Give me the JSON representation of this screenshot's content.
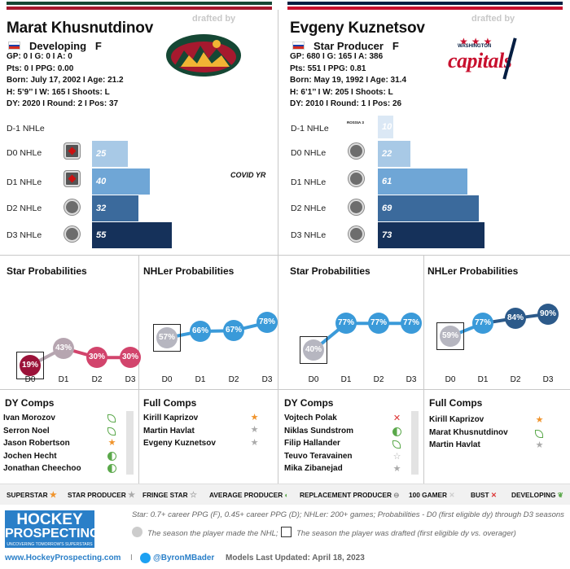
{
  "left": {
    "name": "Marat Khusnutdinov",
    "drafted_by": "drafted by",
    "role": "Developing",
    "pos": "F",
    "stats": [
      "GP: 0 I G: 0 I A: 0",
      "Pts: 0 I PPG: 0.00",
      "Born: July 17, 2002 I Age: 21.2",
      "H: 5’9’’ I W: 165 I Shoots: L",
      "DY: 2020 I Round: 2 I Pos: 37"
    ],
    "logo_name": "Minnesota Wild",
    "nhle": {
      "labels": [
        "D-1 NHLe",
        "D0 NHLe",
        "D1 NHLe",
        "D2 NHLe",
        "D3 NHLe"
      ],
      "values": [
        "",
        "25",
        "40",
        "32",
        "55"
      ],
      "note": "COVID YR"
    },
    "star_prob": {
      "title": "Star Probabilities",
      "x": [
        "D0",
        "D1",
        "D2",
        "D3"
      ],
      "values": [
        "19%",
        "43%",
        "30%",
        "30%"
      ]
    },
    "nhler_prob": {
      "title": "NHLer Probabilities",
      "x": [
        "D0",
        "D1",
        "D2",
        "D3"
      ],
      "values": [
        "57%",
        "66%",
        "67%",
        "78%"
      ]
    },
    "dy_comps": {
      "title": "DY Comps",
      "items": [
        "Ivan Morozov",
        "Serron Noel",
        "Jason Robertson",
        "Jochen Hecht",
        "Jonathan Cheechoo"
      ]
    },
    "full_comps": {
      "title": "Full Comps",
      "items": [
        "Kirill Kaprizov",
        "Martin Havlat",
        "Evgeny Kuznetsov"
      ]
    }
  },
  "right": {
    "name": "Evgeny Kuznetsov",
    "drafted_by": "drafted by",
    "role": "Star Producer",
    "pos": "F",
    "stats": [
      "GP: 680 I G: 165 I A: 386",
      "Pts: 551 I PPG: 0.81",
      "Born: May 19, 1992 I Age: 31.4",
      "H: 6’1’’ I W: 205 I Shoots: L",
      "DY: 2010 I Round: 1 I Pos: 26"
    ],
    "logo_text": "capitals",
    "logo_sub": "WASHINGTON",
    "nhle": {
      "labels": [
        "D-1 NHLe",
        "D0 NHLe",
        "D1 NHLe",
        "D2 NHLe",
        "D3 NHLe"
      ],
      "values": [
        "10",
        "22",
        "61",
        "69",
        "73"
      ],
      "d1_league": "ROSSIA 3"
    },
    "star_prob": {
      "title": "Star Probabilities",
      "x": [
        "D0",
        "D1",
        "D2",
        "D3"
      ],
      "values": [
        "40%",
        "77%",
        "77%",
        "77%"
      ]
    },
    "nhler_prob": {
      "title": "NHLer Probabilities",
      "x": [
        "D0",
        "D1",
        "D2",
        "D3"
      ],
      "values": [
        "59%",
        "77%",
        "84%",
        "90%"
      ]
    },
    "dy_comps": {
      "title": "DY Comps",
      "items": [
        "Vojtech Polak",
        "Niklas Sundstrom",
        "Filip Hallander",
        "Teuvo Teravainen",
        "Mika Zibanejad"
      ]
    },
    "full_comps": {
      "title": "Full Comps",
      "items": [
        "Kirill Kaprizov",
        "Marat Khusnutdinov",
        "Martin Havlat"
      ]
    }
  },
  "legend": [
    "SUPERSTAR",
    "STAR PRODUCER",
    "FRINGE STAR",
    "AVERAGE PRODUCER",
    "REPLACEMENT PRODUCER",
    "100 GAMER",
    "BUST",
    "DEVELOPING"
  ],
  "footer": {
    "brand1": "HOCKEY",
    "brand2": "PROSPECTING",
    "tagline": "UNCOVERING TOMORROW'S SUPERSTARS",
    "note1": "Star: 0.7+ career PPG (F), 0.45+ career PPG (D); NHLer: 200+ games; Probabilities - D0 (first eligible dy) through D3 seasons",
    "note2": "The season the player made the NHL;",
    "note3": "The season the player was drafted (first eligible dy vs. overager)",
    "url": "www.HockeyProspecting.com",
    "sep": "I",
    "handle": "@ByronMBader",
    "updated": "Models Last Updated: April 18, 2023"
  },
  "colors": {
    "wild_green": "#154734",
    "wild_red": "#a6192e",
    "caps_navy": "#041e42",
    "caps_red": "#c8102e",
    "bar1": "#a8c9e6",
    "bar2": "#6fa6d6",
    "bar3": "#3b6a9c",
    "bar4": "#15315a",
    "star": "#c2185b",
    "nhler": "#3a9ad9"
  }
}
